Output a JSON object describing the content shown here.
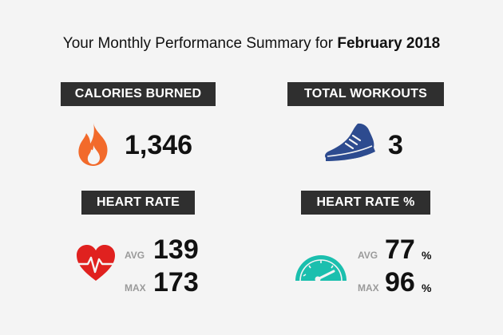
{
  "title": {
    "prefix": "Your Monthly Performance Summary for ",
    "month": "February 2018"
  },
  "colors": {
    "badge_bg": "#2f2f2f",
    "flame": "#f26a2b",
    "shoe": "#2d4b8f",
    "heart": "#e0211f",
    "gauge": "#1bbfae"
  },
  "calories": {
    "label": "CALORIES BURNED",
    "value": "1,346",
    "icon": "flame-icon"
  },
  "workouts": {
    "label": "TOTAL WORKOUTS",
    "value": "3",
    "icon": "running-shoe-icon"
  },
  "heart_rate": {
    "label": "HEART RATE",
    "avg_label": "AVG",
    "avg": "139",
    "max_label": "MAX",
    "max": "173",
    "icon": "heart-pulse-icon"
  },
  "heart_rate_pct": {
    "label": "HEART RATE %",
    "avg_label": "AVG",
    "avg": "77",
    "max_label": "MAX",
    "max": "96",
    "unit": "%",
    "icon": "gauge-icon"
  }
}
